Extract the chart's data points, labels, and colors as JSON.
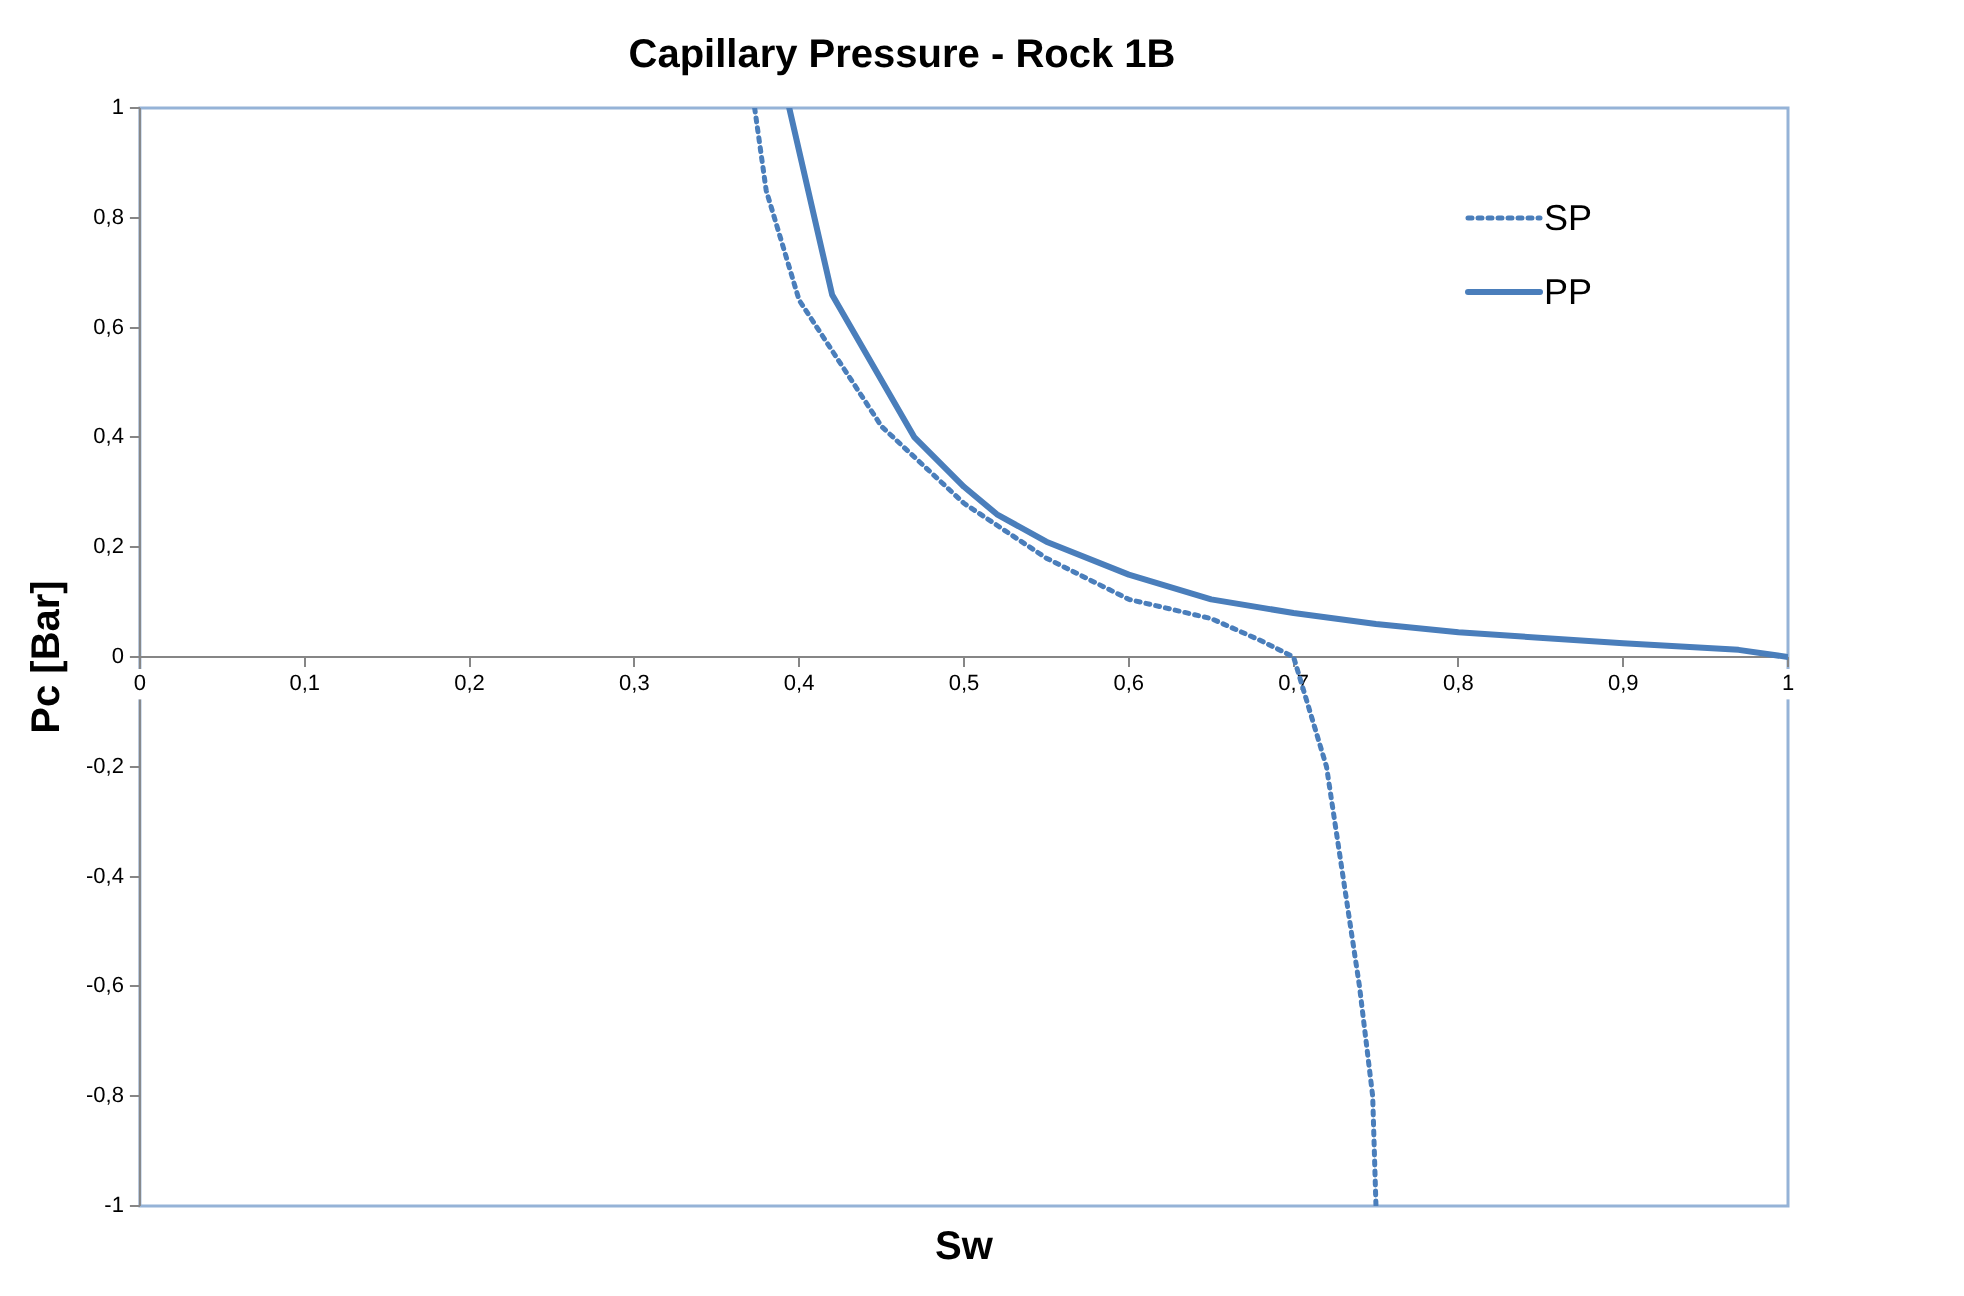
{
  "chart_data": {
    "type": "line",
    "title": "Capillary Pressure - Rock 1B",
    "xlabel": "Sw",
    "ylabel": "Pc [Bar]",
    "xlim": [
      0,
      1
    ],
    "xticks": [
      0,
      {
        "value": 0.1,
        "label": "0,1"
      },
      {
        "value": 0.2,
        "label": "0,2"
      },
      {
        "value": 0.3,
        "label": "0,3"
      },
      {
        "value": 0.4,
        "label": "0,4"
      },
      {
        "value": 0.5,
        "label": "0,5"
      },
      {
        "value": 0.6,
        "label": "0,6"
      },
      {
        "value": 0.7,
        "label": "0,7"
      },
      {
        "value": 0.8,
        "label": "0,8"
      },
      {
        "value": 0.9,
        "label": "0,9"
      },
      1
    ],
    "ylim": [
      -1,
      1
    ],
    "yticks": [
      -1,
      {
        "value": -0.8,
        "label": "-0,8"
      },
      {
        "value": -0.6,
        "label": "-0,6"
      },
      {
        "value": -0.4,
        "label": "-0,4"
      },
      {
        "value": -0.2,
        "label": "-0,2"
      },
      0,
      {
        "value": 0.2,
        "label": "0,2"
      },
      {
        "value": 0.4,
        "label": "0,4"
      },
      {
        "value": 0.6,
        "label": "0,6"
      },
      {
        "value": 0.8,
        "label": "0,8"
      },
      1
    ],
    "grid": false,
    "legend": "top right",
    "marker": "none",
    "series": [
      {
        "name": "SP",
        "color": "#4a7ebb",
        "line_style": "dotted",
        "x": [
          0.373,
          0.38,
          0.4,
          0.45,
          0.5,
          0.55,
          0.6,
          0.65,
          0.68,
          0.7,
          0.72,
          0.73,
          0.74,
          0.748,
          0.75
        ],
        "values": [
          1,
          0.85,
          0.65,
          0.42,
          0.28,
          0.18,
          0.105,
          0.07,
          0.03,
          0,
          -0.2,
          -0.4,
          -0.6,
          -0.8,
          -1
        ]
      },
      {
        "name": "PP",
        "color": "#4a7ebb",
        "line_style": "solid",
        "x": [
          0.394,
          0.42,
          0.47,
          0.5,
          0.52,
          0.55,
          0.6,
          0.65,
          0.7,
          0.75,
          0.8,
          0.9,
          0.97,
          1
        ],
        "values": [
          1,
          0.66,
          0.4,
          0.31,
          0.26,
          0.21,
          0.15,
          0.105,
          0.08,
          0.06,
          0.045,
          0.025,
          0.013,
          0
        ]
      }
    ]
  }
}
